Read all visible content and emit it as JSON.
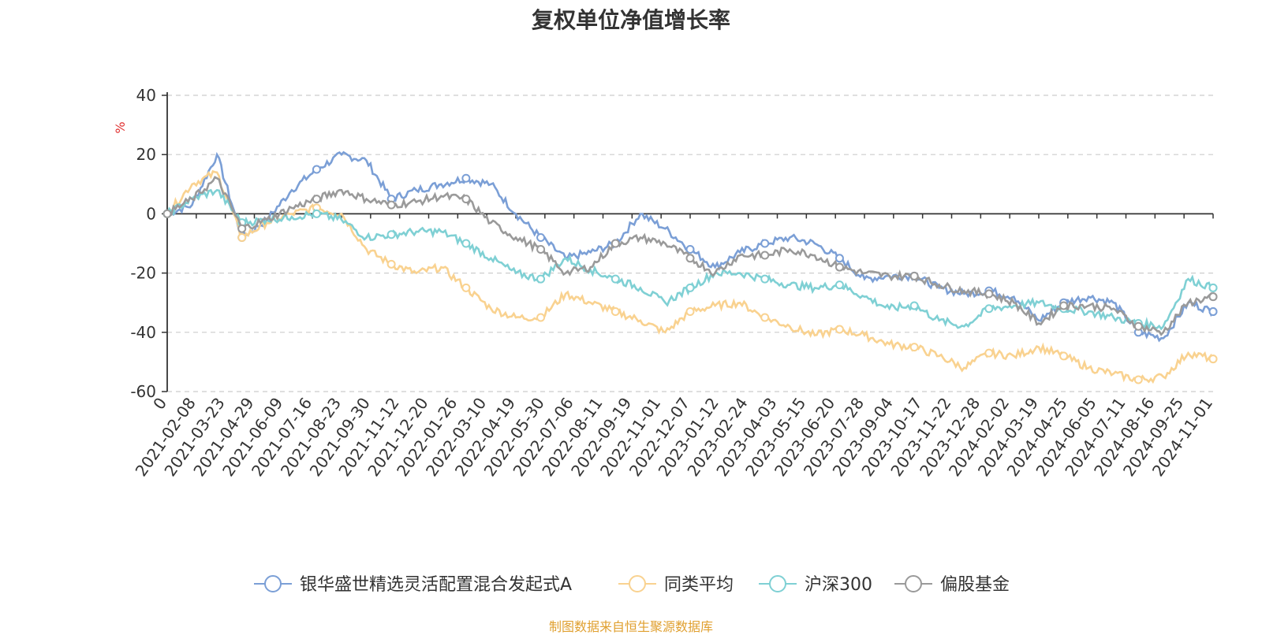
{
  "chart_data": {
    "type": "line",
    "title": "复权单位净值增长率",
    "ylabel": "%",
    "ylim": [
      -60,
      40
    ],
    "yticks": [
      40,
      20,
      0,
      -20,
      -40,
      -60
    ],
    "x_labels": [
      "0",
      "2021-02-08",
      "2021-03-23",
      "2021-04-29",
      "2021-06-09",
      "2021-07-16",
      "2021-08-23",
      "2021-09-30",
      "2021-11-12",
      "2021-12-20",
      "2022-01-26",
      "2022-03-10",
      "2022-04-19",
      "2022-05-30",
      "2022-07-06",
      "2022-08-11",
      "2022-09-19",
      "2022-11-01",
      "2022-12-07",
      "2023-01-12",
      "2023-02-24",
      "2023-04-03",
      "2023-05-15",
      "2023-06-20",
      "2023-07-28",
      "2023-09-04",
      "2023-10-17",
      "2023-11-22",
      "2023-12-28",
      "2024-02-02",
      "2024-03-19",
      "2024-04-25",
      "2024-06-05",
      "2024-07-11",
      "2024-08-16",
      "2024-09-25",
      "2024-11-01"
    ],
    "grid": true,
    "legend_position": "bottom",
    "series": [
      {
        "name": "银华盛世精选灵活配置混合发起式A",
        "color": "#7b9fd6",
        "values": [
          0,
          3,
          20,
          -8,
          -2,
          8,
          15,
          20,
          18,
          5,
          8,
          10,
          12,
          10,
          0,
          -8,
          -15,
          -13,
          -10,
          0,
          -5,
          -12,
          -18,
          -13,
          -10,
          -8,
          -10,
          -15,
          -22,
          -21,
          -21,
          -25,
          -27,
          -26,
          -28,
          -36,
          -30,
          -28,
          -30,
          -40,
          -42,
          -30,
          -33
        ]
      },
      {
        "name": "同类平均",
        "color": "#f9d290",
        "values": [
          0,
          10,
          14,
          -8,
          -3,
          0,
          2,
          0,
          -12,
          -17,
          -20,
          -18,
          -25,
          -32,
          -35,
          -35,
          -27,
          -30,
          -33,
          -36,
          -40,
          -33,
          -31,
          -30,
          -35,
          -38,
          -41,
          -39,
          -41,
          -44,
          -45,
          -48,
          -52,
          -47,
          -48,
          -45,
          -48,
          -52,
          -54,
          -56,
          -55,
          -47,
          -49
        ]
      },
      {
        "name": "沪深300",
        "color": "#7fd0d4",
        "values": [
          0,
          5,
          8,
          -3,
          -2,
          -1,
          0,
          -2,
          -8,
          -7,
          -6,
          -6,
          -10,
          -15,
          -20,
          -22,
          -15,
          -19,
          -22,
          -25,
          -30,
          -25,
          -20,
          -20,
          -22,
          -24,
          -25,
          -24,
          -28,
          -32,
          -31,
          -36,
          -38,
          -32,
          -31,
          -30,
          -32,
          -33,
          -35,
          -37,
          -38,
          -22,
          -25
        ]
      },
      {
        "name": "偏股基金",
        "color": "#9a9a9a",
        "values": [
          0,
          5,
          12,
          -5,
          -2,
          2,
          5,
          8,
          5,
          3,
          4,
          6,
          5,
          -3,
          -8,
          -12,
          -20,
          -18,
          -10,
          -8,
          -10,
          -15,
          -20,
          -14,
          -14,
          -12,
          -14,
          -18,
          -20,
          -21,
          -21,
          -24,
          -26,
          -27,
          -30,
          -37,
          -31,
          -31,
          -32,
          -38,
          -40,
          -30,
          -28
        ]
      }
    ]
  },
  "source_note": "制图数据来自恒生聚源数据库",
  "colors": {
    "source_note": "#e0a030",
    "unit": "#e03030",
    "grid": "#cccccc",
    "axis": "#333333"
  }
}
